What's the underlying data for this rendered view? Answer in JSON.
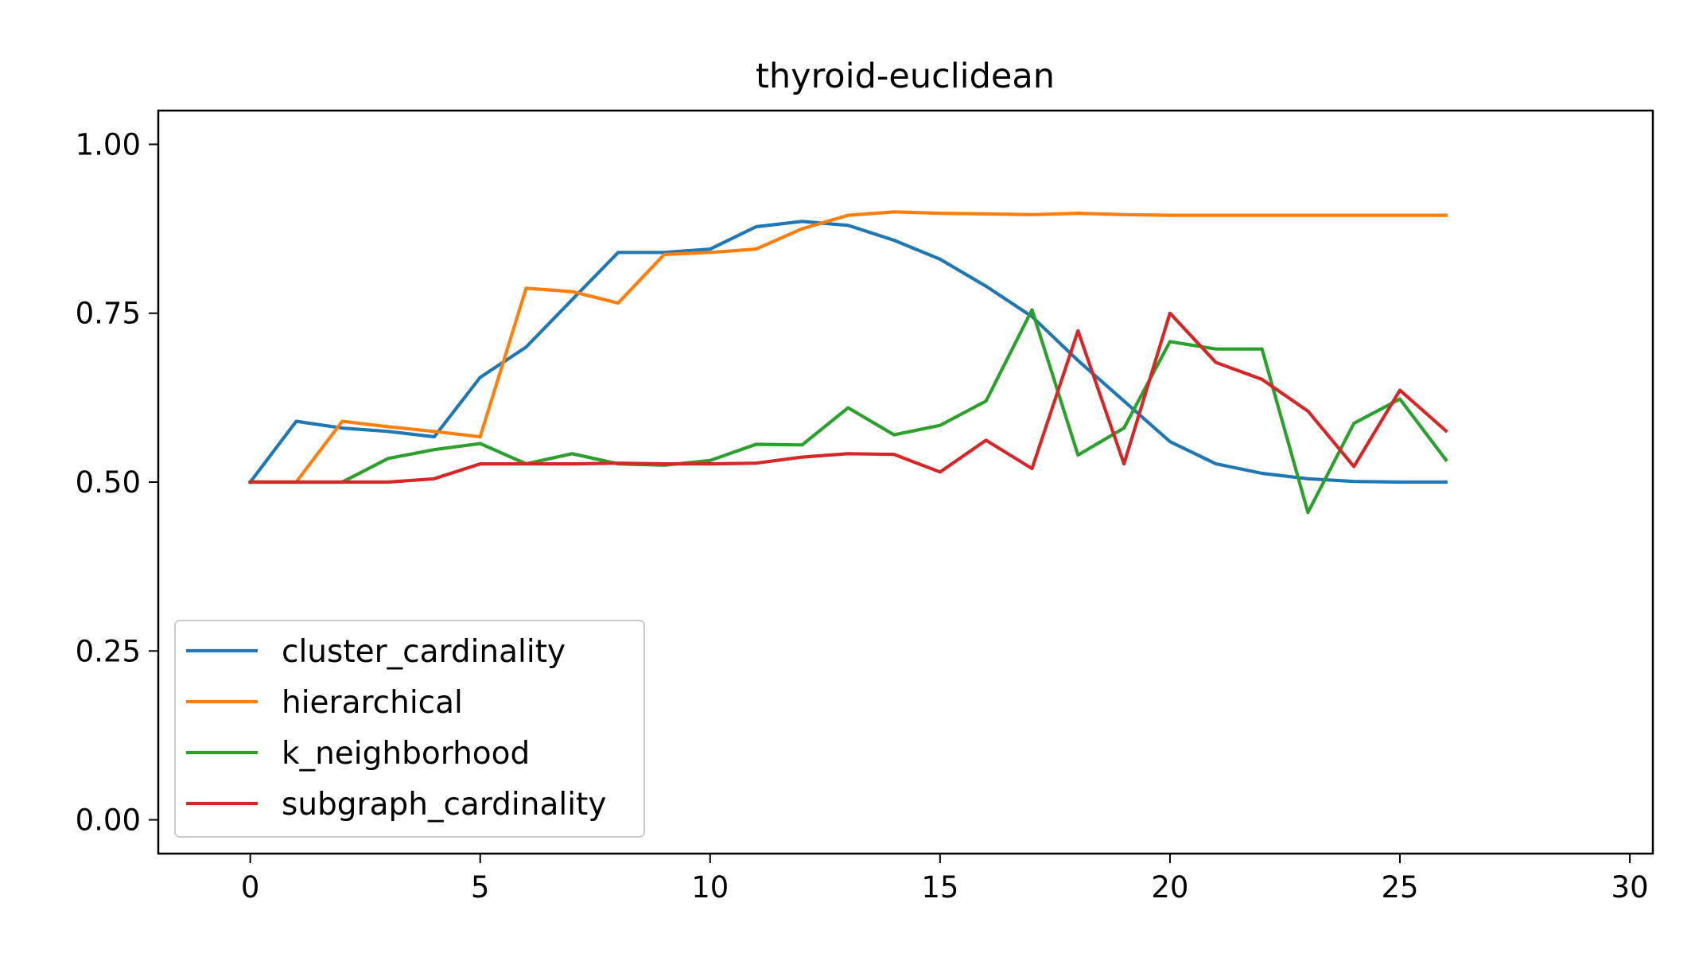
{
  "chart_data": {
    "type": "line",
    "title": "thyroid-euclidean",
    "xlabel": "",
    "ylabel": "",
    "xlim": [
      -2,
      30.5
    ],
    "ylim": [
      -0.05,
      1.05
    ],
    "x_ticks": [
      0,
      5,
      10,
      15,
      20,
      25,
      30
    ],
    "x_tick_labels": [
      "0",
      "5",
      "10",
      "15",
      "20",
      "25",
      "30"
    ],
    "y_ticks": [
      0.0,
      0.25,
      0.5,
      0.75,
      1.0
    ],
    "y_tick_labels": [
      "0.00",
      "0.25",
      "0.50",
      "0.75",
      "1.00"
    ],
    "grid": false,
    "legend_position": "lower-left",
    "x": [
      0,
      1,
      2,
      3,
      4,
      5,
      6,
      7,
      8,
      9,
      10,
      11,
      12,
      13,
      14,
      15,
      16,
      17,
      18,
      19,
      20,
      21,
      22,
      23,
      24,
      25,
      26
    ],
    "series": [
      {
        "name": "cluster_cardinality",
        "color": "#1f77b4",
        "values": [
          0.5,
          0.59,
          0.58,
          0.575,
          0.567,
          0.655,
          0.7,
          0.77,
          0.84,
          0.84,
          0.845,
          0.878,
          0.886,
          0.88,
          0.858,
          0.83,
          0.79,
          0.745,
          0.68,
          0.62,
          0.56,
          0.527,
          0.513,
          0.505,
          0.501,
          0.5,
          0.5
        ]
      },
      {
        "name": "hierarchical",
        "color": "#ff7f0e",
        "values": [
          0.5,
          0.5,
          0.59,
          0.582,
          0.575,
          0.567,
          0.787,
          0.782,
          0.765,
          0.837,
          0.84,
          0.845,
          0.875,
          0.895,
          0.9,
          0.898,
          0.897,
          0.896,
          0.898,
          0.896,
          0.895,
          0.895,
          0.895,
          0.895,
          0.895,
          0.895,
          0.895
        ]
      },
      {
        "name": "k_neighborhood",
        "color": "#2ca02c",
        "values": [
          0.5,
          0.5,
          0.5,
          0.535,
          0.548,
          0.557,
          0.527,
          0.542,
          0.527,
          0.525,
          0.532,
          0.556,
          0.555,
          0.61,
          0.57,
          0.584,
          0.62,
          0.755,
          0.54,
          0.58,
          0.708,
          0.697,
          0.697,
          0.455,
          0.587,
          0.623,
          0.533
        ]
      },
      {
        "name": "subgraph_cardinality",
        "color": "#d62728",
        "values": [
          0.5,
          0.5,
          0.5,
          0.5,
          0.505,
          0.527,
          0.527,
          0.527,
          0.528,
          0.527,
          0.527,
          0.528,
          0.537,
          0.542,
          0.541,
          0.515,
          0.562,
          0.52,
          0.724,
          0.527,
          0.75,
          0.677,
          0.652,
          0.605,
          0.523,
          0.636,
          0.576
        ]
      }
    ]
  }
}
